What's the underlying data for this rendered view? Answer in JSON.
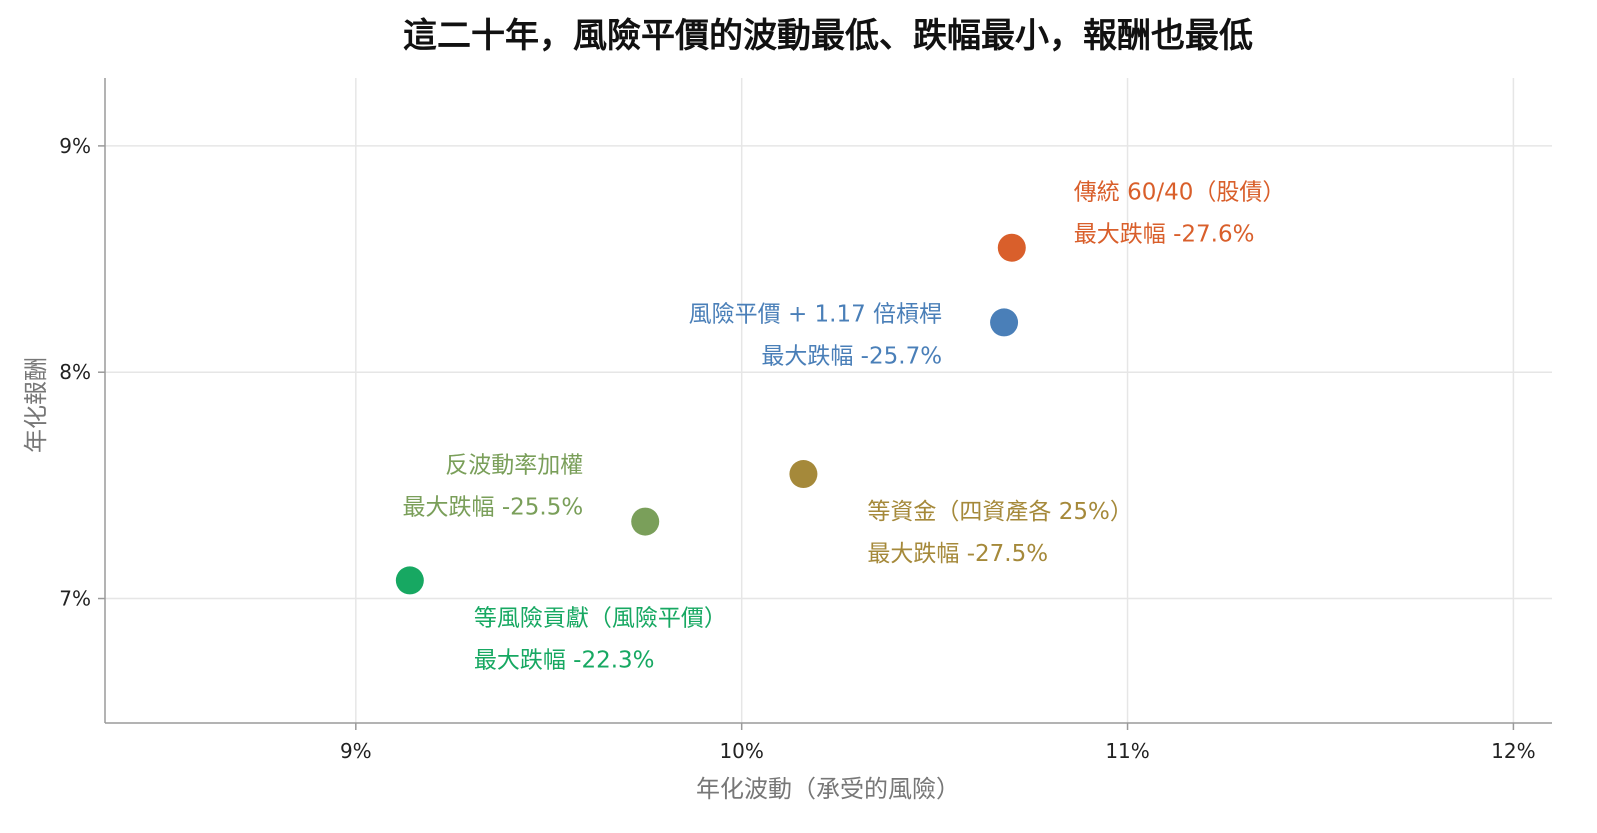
{
  "chart_data": {
    "type": "scatter",
    "title": "這二十年，風險平價的波動最低、跌幅最小，報酬也最低",
    "xlabel": "年化波動（承受的風險）",
    "ylabel": "年化報酬",
    "xlim": [
      8.35,
      12.1
    ],
    "ylim": [
      6.45,
      9.3
    ],
    "x_ticks": [
      9,
      10,
      11,
      12
    ],
    "x_tick_labels": [
      "9%",
      "10%",
      "11%",
      "12%"
    ],
    "y_ticks": [
      7,
      8,
      9
    ],
    "y_tick_labels": [
      "7%",
      "8%",
      "9%"
    ],
    "grid": true,
    "legend": "none",
    "series": [
      {
        "name": "傳統 60/40（股債）",
        "color": "#d95f2b",
        "x": [
          10.7
        ],
        "y": [
          8.55
        ],
        "label_line1": "傳統 60/40（股債）",
        "label_line2": "最大跌幅 -27.6%",
        "label_align": "left"
      },
      {
        "name": "風險平價 + 1.17 倍槓桿",
        "color": "#4a7fb8",
        "x": [
          10.68
        ],
        "y": [
          8.22
        ],
        "label_line1": "風險平價 + 1.17 倍槓桿",
        "label_line2": "最大跌幅 -25.7%",
        "label_align": "right"
      },
      {
        "name": "等資金（四資產各 25%）",
        "color": "#a5893a",
        "x": [
          10.16
        ],
        "y": [
          7.55
        ],
        "label_line1": "等資金（四資產各 25%）",
        "label_line2": "最大跌幅 -27.5%",
        "label_align": "left"
      },
      {
        "name": "反波動率加權",
        "color": "#7a9f5a",
        "x": [
          9.75
        ],
        "y": [
          7.34
        ],
        "label_line1": "反波動率加權",
        "label_line2": "最大跌幅 -25.5%",
        "label_align": "right"
      },
      {
        "name": "等風險貢獻（風險平價）",
        "color": "#17a862",
        "x": [
          9.14
        ],
        "y": [
          7.08
        ],
        "label_line1": "等風險貢獻（風險平價）",
        "label_line2": "最大跌幅 -22.3%",
        "label_align": "left"
      }
    ]
  }
}
